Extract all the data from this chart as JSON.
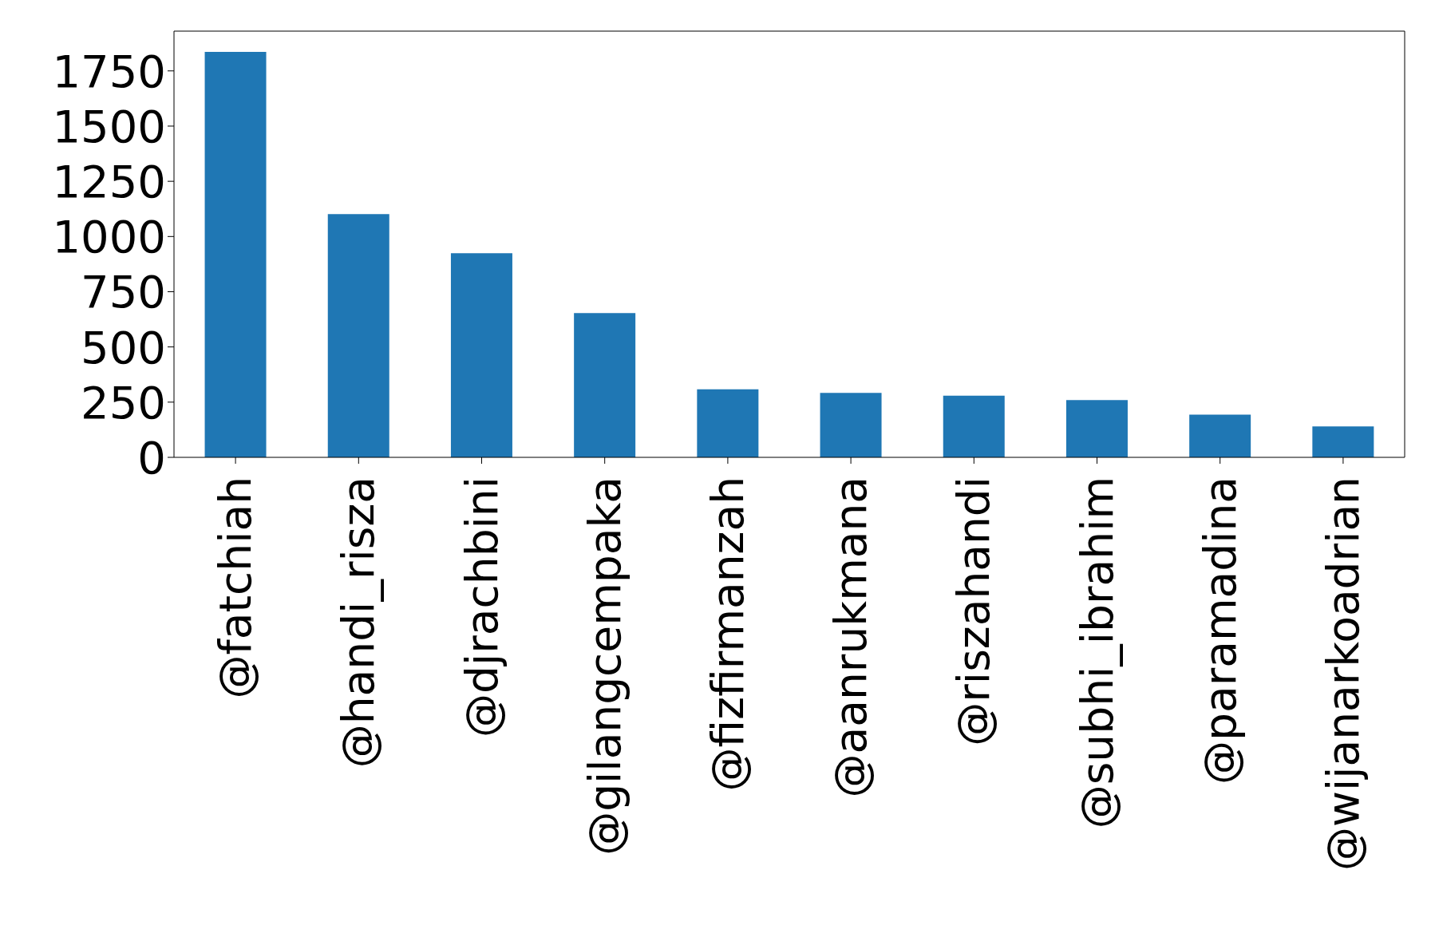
{
  "chart_data": {
    "type": "bar",
    "categories": [
      "@fatchiah",
      "@handi_risza",
      "@djrachbini",
      "@gilangcempaka",
      "@fizfirmanzah",
      "@aanrukmana",
      "@riszahandi",
      "@subhi_ibrahim",
      "@paramadina",
      "@wijanarkoadrian"
    ],
    "values": [
      1836,
      1101,
      924,
      653,
      308,
      292,
      279,
      259,
      193,
      140
    ],
    "color": "#1f77b4",
    "ylim": [
      0,
      1930
    ],
    "yticks": [
      0,
      250,
      500,
      750,
      1000,
      1250,
      1500,
      1750
    ],
    "grid": false
  }
}
